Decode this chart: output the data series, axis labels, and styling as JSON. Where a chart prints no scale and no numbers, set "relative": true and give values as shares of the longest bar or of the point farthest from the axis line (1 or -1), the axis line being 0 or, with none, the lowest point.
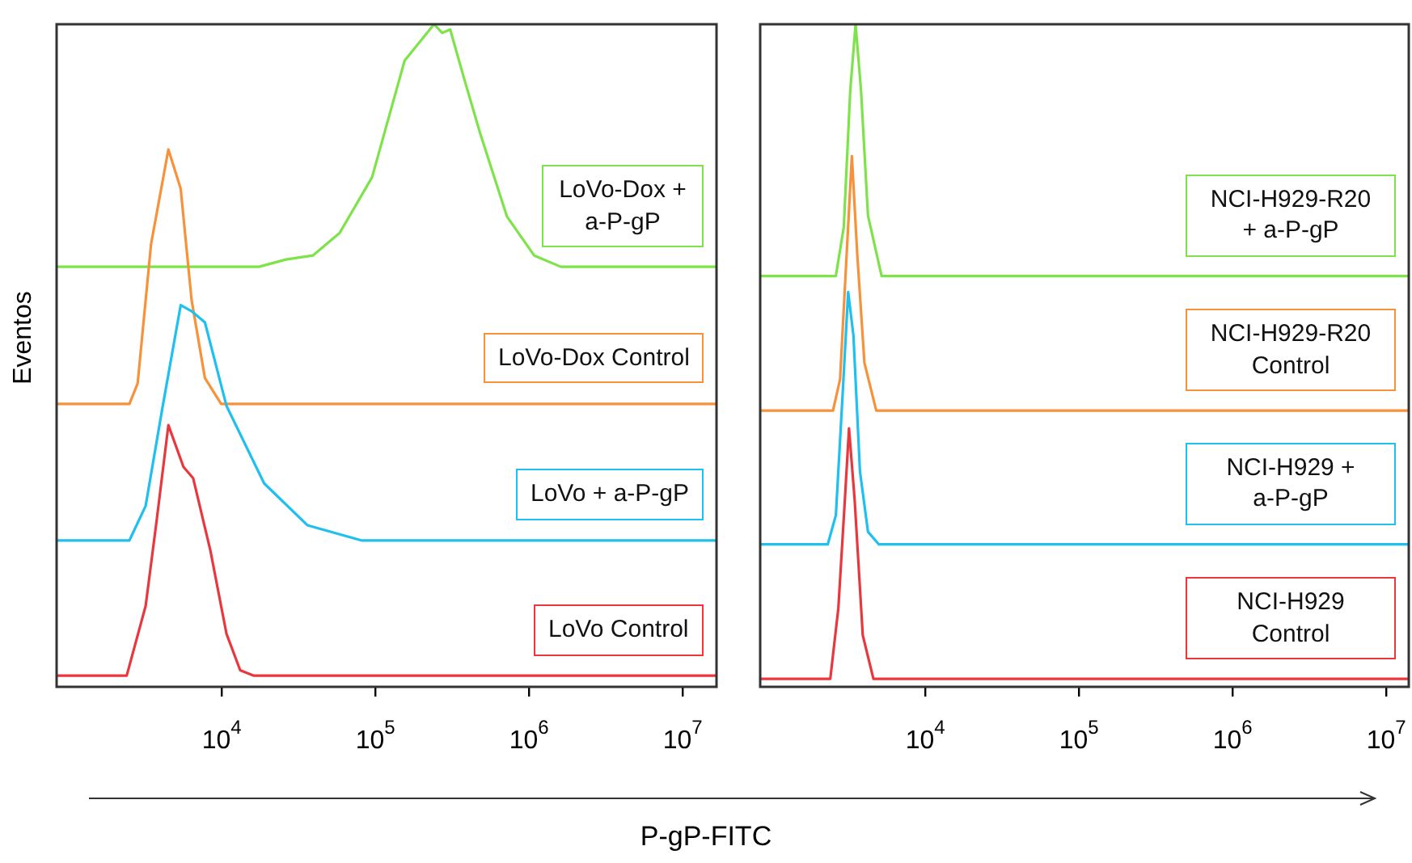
{
  "chart_data": [
    {
      "type": "line",
      "relative": true,
      "log": "x",
      "ylabel": "Eventos",
      "xlabel": "P-gP-FITC",
      "xlim": [
        843,
        16600000
      ],
      "xticks": [
        {
          "value": 10000,
          "label": "10$^{4}$"
        },
        {
          "value": 100000,
          "label": "10$^{5}$"
        },
        {
          "value": 1000000,
          "label": "10$^{6}$"
        },
        {
          "value": 10000000,
          "label": "10$^{7}$"
        }
      ],
      "series": [
        {
          "name": "LoVo Control",
          "color": "#e8383d",
          "x": [
            843,
            2410,
            3200,
            3760,
            4500,
            5640,
            6520,
            8440,
            10750,
            13200,
            16100,
            16600000
          ],
          "values": [
            0.017,
            0.017,
            0.122,
            0.248,
            0.395,
            0.332,
            0.315,
            0.206,
            0.08,
            0.025,
            0.017,
            0.017
          ]
        },
        {
          "name": "LoVo + a-P-gP",
          "color": "#1fbfef",
          "x": [
            843,
            2510,
            3200,
            4080,
            5410,
            6370,
            7780,
            10750,
            18900,
            36100,
            81100,
            16600000
          ],
          "values": [
            0.221,
            0.221,
            0.273,
            0.416,
            0.576,
            0.567,
            0.55,
            0.424,
            0.307,
            0.244,
            0.221,
            0.221
          ]
        },
        {
          "name": "LoVo-Dox Control",
          "color": "#f7913a",
          "x": [
            843,
            2510,
            2840,
            3470,
            4500,
            5410,
            6370,
            7780,
            9920,
            16600000
          ],
          "values": [
            0.427,
            0.427,
            0.458,
            0.668,
            0.811,
            0.752,
            0.584,
            0.466,
            0.427,
            0.427
          ]
        },
        {
          "name": "LoVo-Dox + a-P-gP",
          "color": "#7ee34a",
          "x": [
            843,
            17500,
            26200,
            39200,
            58600,
            95200,
            155000,
            241000,
            272000,
            307000,
            376000,
            480000,
            718000,
            1080000,
            1610000,
            16600000
          ],
          "values": [
            0.634,
            0.634,
            0.645,
            0.651,
            0.685,
            0.769,
            0.945,
            1,
            0.987,
            0.992,
            0.92,
            0.836,
            0.71,
            0.651,
            0.634,
            0.634
          ]
        }
      ]
    },
    {
      "type": "line",
      "relative": true,
      "log": "x",
      "xlim": [
        843,
        14000000
      ],
      "xticks": [
        {
          "value": 10000,
          "label": "10$^{4}$"
        },
        {
          "value": 100000,
          "label": "10$^{5}$"
        },
        {
          "value": 1000000,
          "label": "10$^{6}$"
        },
        {
          "value": 10000000,
          "label": "10$^{7}$"
        }
      ],
      "series": [
        {
          "name": "NCI-H929 Control",
          "color": "#e8383d",
          "x": [
            843,
            2410,
            2720,
            3000,
            3190,
            3470,
            3920,
            4600,
            14000000
          ],
          "values": [
            0.012,
            0.012,
            0.119,
            0.283,
            0.39,
            0.283,
            0.078,
            0.012,
            0.012
          ]
        },
        {
          "name": "NCI-H929 + a-P-gP",
          "color": "#1fbfef",
          "x": [
            843,
            2320,
            2620,
            2910,
            3150,
            3410,
            3760,
            4240,
            4990,
            14000000
          ],
          "values": [
            0.215,
            0.215,
            0.259,
            0.448,
            0.596,
            0.53,
            0.325,
            0.234,
            0.215,
            0.215
          ]
        },
        {
          "name": "NCI-H929-R20 Control",
          "color": "#f7913a",
          "x": [
            843,
            2510,
            2790,
            3080,
            3330,
            3610,
            4020,
            4800,
            14000000
          ],
          "values": [
            0.417,
            0.417,
            0.464,
            0.653,
            0.801,
            0.653,
            0.489,
            0.417,
            0.417
          ]
        },
        {
          "name": "NCI-H929-R20 + a-P-gP",
          "color": "#7ee34a",
          "x": [
            843,
            2620,
            2950,
            3250,
            3520,
            3820,
            4240,
            5200,
            14000000
          ],
          "values": [
            0.62,
            0.62,
            0.694,
            0.9,
            1,
            0.9,
            0.711,
            0.62,
            0.62
          ]
        }
      ]
    }
  ]
}
